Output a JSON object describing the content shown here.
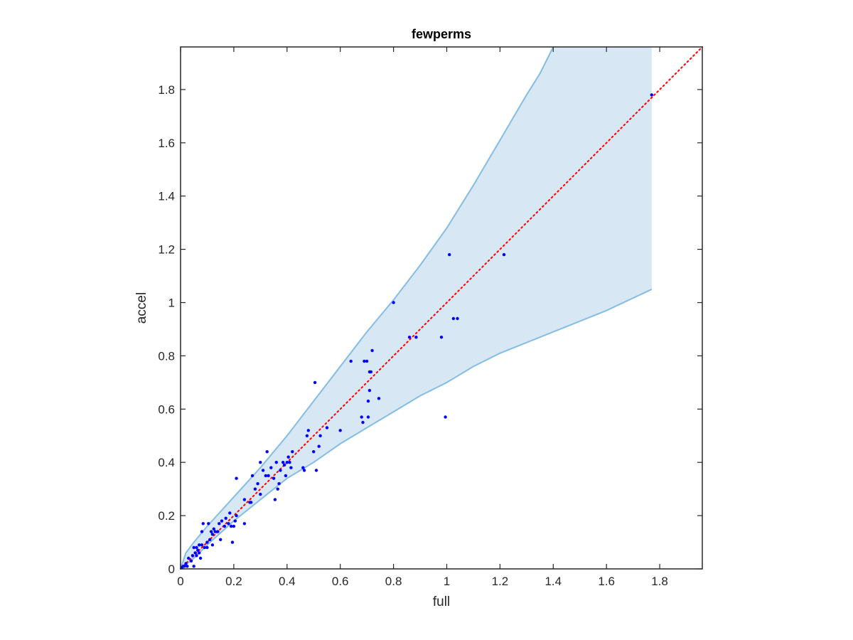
{
  "chart_data": {
    "type": "scatter",
    "title": "fewperms",
    "xlabel": "full",
    "ylabel": "accel",
    "xlim": [
      0,
      1.96
    ],
    "ylim": [
      0,
      1.96
    ],
    "x_ticks": [
      0,
      0.2,
      0.4,
      0.6,
      0.8,
      1,
      1.2,
      1.4,
      1.6,
      1.8
    ],
    "x_tick_labels": [
      "0",
      "0.2",
      "0.4",
      "0.6",
      "0.8",
      "1",
      "1.2",
      "1.4",
      "1.6",
      "1.8"
    ],
    "y_ticks": [
      0,
      0.2,
      0.4,
      0.6,
      0.8,
      1,
      1.2,
      1.4,
      1.6,
      1.8
    ],
    "y_tick_labels": [
      "0",
      "0.2",
      "0.4",
      "0.6",
      "0.8",
      "1",
      "1.2",
      "1.4",
      "1.6",
      "1.8"
    ],
    "grid": false,
    "colors": {
      "points": "#0000ff",
      "reference_line": "#ff0000",
      "band_fill": "#d7e7f4",
      "band_edge": "#84bde3",
      "axes": "#262626"
    },
    "reference_line": {
      "style": "dotted",
      "from": [
        0,
        0
      ],
      "to": [
        1.96,
        1.96
      ]
    },
    "band": {
      "upper": [
        [
          0,
          0
        ],
        [
          0.02,
          0.06
        ],
        [
          0.05,
          0.1
        ],
        [
          0.1,
          0.16
        ],
        [
          0.2,
          0.27
        ],
        [
          0.3,
          0.38
        ],
        [
          0.4,
          0.5
        ],
        [
          0.5,
          0.63
        ],
        [
          0.6,
          0.76
        ],
        [
          0.7,
          0.89
        ],
        [
          0.8,
          1.01
        ],
        [
          0.9,
          1.14
        ],
        [
          1.0,
          1.28
        ],
        [
          1.1,
          1.44
        ],
        [
          1.2,
          1.61
        ],
        [
          1.3,
          1.78
        ],
        [
          1.35,
          1.86
        ],
        [
          1.4,
          1.96
        ],
        [
          1.77,
          1.96
        ]
      ],
      "lower": [
        [
          1.77,
          1.96
        ],
        [
          1.77,
          1.05
        ],
        [
          1.6,
          0.97
        ],
        [
          1.4,
          0.89
        ],
        [
          1.2,
          0.81
        ],
        [
          1.1,
          0.76
        ],
        [
          1.0,
          0.7
        ],
        [
          0.9,
          0.65
        ],
        [
          0.8,
          0.59
        ],
        [
          0.7,
          0.53
        ],
        [
          0.6,
          0.47
        ],
        [
          0.5,
          0.4
        ],
        [
          0.4,
          0.34
        ],
        [
          0.3,
          0.26
        ],
        [
          0.2,
          0.18
        ],
        [
          0.1,
          0.09
        ],
        [
          0.05,
          0.04
        ],
        [
          0,
          0
        ]
      ]
    },
    "points": [
      [
        0.005,
        0.005
      ],
      [
        0.01,
        0.01
      ],
      [
        0.015,
        0.01
      ],
      [
        0.02,
        0.02
      ],
      [
        0.025,
        0.01
      ],
      [
        0.03,
        0.04
      ],
      [
        0.04,
        0.03
      ],
      [
        0.045,
        0.05
      ],
      [
        0.05,
        0.08
      ],
      [
        0.05,
        0.01
      ],
      [
        0.055,
        0.06
      ],
      [
        0.06,
        0.05
      ],
      [
        0.06,
        0.08
      ],
      [
        0.065,
        0.07
      ],
      [
        0.07,
        0.09
      ],
      [
        0.07,
        0.06
      ],
      [
        0.075,
        0.04
      ],
      [
        0.08,
        0.14
      ],
      [
        0.08,
        0.09
      ],
      [
        0.085,
        0.17
      ],
      [
        0.09,
        0.08
      ],
      [
        0.1,
        0.08
      ],
      [
        0.1,
        0.1
      ],
      [
        0.105,
        0.17
      ],
      [
        0.11,
        0.11
      ],
      [
        0.115,
        0.14
      ],
      [
        0.12,
        0.09
      ],
      [
        0.12,
        0.13
      ],
      [
        0.125,
        0.15
      ],
      [
        0.13,
        0.14
      ],
      [
        0.14,
        0.14
      ],
      [
        0.145,
        0.17
      ],
      [
        0.15,
        0.11
      ],
      [
        0.155,
        0.18
      ],
      [
        0.165,
        0.16
      ],
      [
        0.17,
        0.19
      ],
      [
        0.18,
        0.17
      ],
      [
        0.185,
        0.21
      ],
      [
        0.19,
        0.16
      ],
      [
        0.195,
        0.1
      ],
      [
        0.2,
        0.16
      ],
      [
        0.205,
        0.18
      ],
      [
        0.21,
        0.2
      ],
      [
        0.21,
        0.34
      ],
      [
        0.24,
        0.26
      ],
      [
        0.24,
        0.17
      ],
      [
        0.26,
        0.25
      ],
      [
        0.265,
        0.25
      ],
      [
        0.27,
        0.35
      ],
      [
        0.28,
        0.3
      ],
      [
        0.29,
        0.32
      ],
      [
        0.3,
        0.4
      ],
      [
        0.3,
        0.28
      ],
      [
        0.31,
        0.37
      ],
      [
        0.32,
        0.35
      ],
      [
        0.325,
        0.44
      ],
      [
        0.33,
        0.35
      ],
      [
        0.34,
        0.38
      ],
      [
        0.35,
        0.34
      ],
      [
        0.355,
        0.26
      ],
      [
        0.36,
        0.4
      ],
      [
        0.365,
        0.3
      ],
      [
        0.37,
        0.32
      ],
      [
        0.375,
        0.37
      ],
      [
        0.385,
        0.4
      ],
      [
        0.39,
        0.39
      ],
      [
        0.395,
        0.35
      ],
      [
        0.4,
        0.4
      ],
      [
        0.405,
        0.42
      ],
      [
        0.41,
        0.4
      ],
      [
        0.415,
        0.38
      ],
      [
        0.42,
        0.44
      ],
      [
        0.46,
        0.38
      ],
      [
        0.465,
        0.37
      ],
      [
        0.475,
        0.5
      ],
      [
        0.48,
        0.52
      ],
      [
        0.5,
        0.44
      ],
      [
        0.505,
        0.7
      ],
      [
        0.51,
        0.37
      ],
      [
        0.52,
        0.46
      ],
      [
        0.525,
        0.5
      ],
      [
        0.55,
        0.53
      ],
      [
        0.6,
        0.52
      ],
      [
        0.64,
        0.78
      ],
      [
        0.68,
        0.57
      ],
      [
        0.685,
        0.55
      ],
      [
        0.69,
        0.78
      ],
      [
        0.7,
        0.78
      ],
      [
        0.705,
        0.57
      ],
      [
        0.705,
        0.63
      ],
      [
        0.71,
        0.74
      ],
      [
        0.71,
        0.67
      ],
      [
        0.715,
        0.74
      ],
      [
        0.72,
        0.82
      ],
      [
        0.745,
        0.64
      ],
      [
        0.8,
        1.0
      ],
      [
        0.86,
        0.87
      ],
      [
        0.885,
        0.87
      ],
      [
        0.98,
        0.87
      ],
      [
        0.995,
        0.57
      ],
      [
        1.01,
        1.18
      ],
      [
        1.025,
        0.94
      ],
      [
        1.04,
        0.94
      ],
      [
        1.215,
        1.18
      ],
      [
        1.77,
        1.78
      ]
    ]
  }
}
